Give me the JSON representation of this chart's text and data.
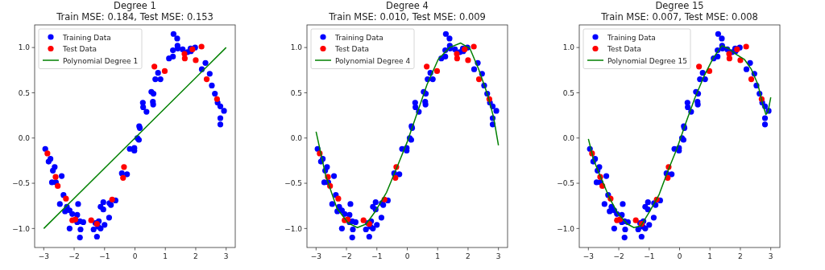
{
  "chart_data": [
    {
      "type": "scatter",
      "title": "Degree 1",
      "subtitle": "Train MSE: 0.184, Test MSE: 0.153",
      "xlim": [
        -3.3,
        3.3
      ],
      "ylim": [
        -1.21,
        1.25
      ],
      "xticks": [
        {
          "value": -3,
          "label": "−3"
        },
        {
          "value": -2,
          "label": "−2"
        },
        {
          "value": -1,
          "label": "−1"
        },
        {
          "value": 0,
          "label": "0"
        },
        {
          "value": 1,
          "label": "1"
        },
        {
          "value": 2,
          "label": "2"
        },
        {
          "value": 3,
          "label": "3"
        }
      ],
      "yticks": [
        {
          "value": -1,
          "label": "−1.0"
        },
        {
          "value": -0.5,
          "label": "−0.5"
        },
        {
          "value": 0,
          "label": "0.0"
        },
        {
          "value": 0.5,
          "label": "0.5"
        },
        {
          "value": 1,
          "label": "1.0"
        }
      ],
      "legend": "top left",
      "marker": "circle",
      "series": [
        {
          "name": "Training Data",
          "color": "#0000ff",
          "x": [
            -2.95,
            -2.84,
            -2.78,
            -2.7,
            -2.64,
            -2.73,
            -2.6,
            -2.41,
            -2.47,
            -2.35,
            -2.3,
            -2.24,
            -2.15,
            -2.06,
            -2.15,
            -1.9,
            -1.87,
            -1.9,
            -1.81,
            -1.79,
            -1.81,
            -1.7,
            -1.36,
            -1.3,
            -1.25,
            -1.19,
            -1.13,
            -1.21,
            -1.13,
            -1.04,
            -1.04,
            -1.0,
            -0.85,
            -0.84,
            -0.79,
            -0.64,
            -0.43,
            -0.26,
            -0.17,
            -0.02,
            -0.02,
            0.08,
            0.13,
            0.14,
            0.16,
            0.26,
            0.27,
            0.38,
            0.54,
            0.61,
            0.59,
            0.6,
            0.67,
            0.76,
            0.84,
            1.12,
            1.25,
            1.25,
            1.27,
            1.39,
            1.4,
            1.41,
            1.57,
            1.73,
            1.83,
            1.84,
            1.98,
            2.2,
            2.32,
            2.46,
            2.53,
            2.63,
            2.72,
            2.81,
            2.81,
            2.81,
            2.93
          ],
          "values": [
            -0.12,
            -0.26,
            -0.23,
            -0.36,
            -0.32,
            -0.49,
            -0.49,
            -0.42,
            -0.73,
            -0.63,
            -0.81,
            -0.76,
            -0.8,
            -0.84,
            -1.0,
            -0.85,
            -0.73,
            -0.93,
            -0.92,
            -1.01,
            -1.1,
            -0.93,
            -1.01,
            -0.94,
            -1.09,
            -0.92,
            -1.0,
            -0.98,
            -0.76,
            -0.79,
            -0.71,
            -0.96,
            -0.88,
            -0.72,
            -0.74,
            -0.69,
            -0.39,
            -0.4,
            -0.12,
            -0.14,
            -0.11,
            0.0,
            -0.02,
            0.13,
            0.11,
            0.39,
            0.34,
            0.29,
            0.51,
            0.49,
            0.4,
            0.37,
            0.65,
            0.72,
            0.65,
            0.88,
            0.9,
            0.97,
            1.15,
            1.1,
            1.02,
            0.99,
            0.98,
            0.95,
            0.99,
            0.96,
            1.0,
            0.76,
            0.83,
            0.71,
            0.58,
            0.49,
            0.39,
            0.35,
            0.22,
            0.15,
            0.3
          ]
        },
        {
          "name": "Test Data",
          "color": "#ff0000",
          "x": [
            -2.88,
            -2.61,
            -2.54,
            -2.27,
            -2.06,
            -1.96,
            -1.44,
            -1.25,
            -0.75,
            -0.39,
            -0.36,
            0.64,
            0.98,
            1.63,
            1.64,
            1.89,
            2.0,
            2.19,
            2.36,
            2.7
          ],
          "values": [
            -0.17,
            -0.43,
            -0.53,
            -0.67,
            -0.91,
            -0.9,
            -0.91,
            -0.95,
            -0.68,
            -0.44,
            -0.32,
            0.79,
            0.74,
            0.93,
            0.88,
            0.98,
            0.86,
            1.01,
            0.65,
            0.43
          ]
        },
        {
          "name": "Polynomial Degree 1",
          "type": "line",
          "marker": "none",
          "color": "#008000",
          "x": [
            -3,
            3
          ],
          "values": [
            -1,
            1
          ]
        }
      ]
    },
    {
      "type": "scatter",
      "title": "Degree 4",
      "subtitle": "Train MSE: 0.010, Test MSE: 0.009",
      "xlim": [
        -3.3,
        3.3
      ],
      "ylim": [
        -1.21,
        1.25
      ],
      "xticks": [
        {
          "value": -3,
          "label": "−3"
        },
        {
          "value": -2,
          "label": "−2"
        },
        {
          "value": -1,
          "label": "−1"
        },
        {
          "value": 0,
          "label": "0"
        },
        {
          "value": 1,
          "label": "1"
        },
        {
          "value": 2,
          "label": "2"
        },
        {
          "value": 3,
          "label": "3"
        }
      ],
      "yticks": [
        {
          "value": -1,
          "label": "−1.0"
        },
        {
          "value": -0.5,
          "label": "−0.5"
        },
        {
          "value": 0,
          "label": "0.0"
        },
        {
          "value": 0.5,
          "label": "0.5"
        },
        {
          "value": 1,
          "label": "1.0"
        }
      ],
      "legend": "top left",
      "marker": "circle",
      "series": [
        {
          "name": "Training Data",
          "color": "#0000ff",
          "x": [
            -2.95,
            -2.84,
            -2.78,
            -2.7,
            -2.64,
            -2.73,
            -2.6,
            -2.41,
            -2.47,
            -2.35,
            -2.3,
            -2.24,
            -2.15,
            -2.06,
            -2.15,
            -1.9,
            -1.87,
            -1.9,
            -1.81,
            -1.79,
            -1.81,
            -1.7,
            -1.36,
            -1.3,
            -1.25,
            -1.19,
            -1.13,
            -1.21,
            -1.13,
            -1.04,
            -1.04,
            -1.0,
            -0.85,
            -0.84,
            -0.79,
            -0.64,
            -0.43,
            -0.26,
            -0.17,
            -0.02,
            -0.02,
            0.08,
            0.13,
            0.14,
            0.16,
            0.26,
            0.27,
            0.38,
            0.54,
            0.61,
            0.59,
            0.6,
            0.67,
            0.76,
            0.84,
            1.12,
            1.25,
            1.25,
            1.27,
            1.39,
            1.4,
            1.41,
            1.57,
            1.73,
            1.83,
            1.84,
            1.98,
            2.2,
            2.32,
            2.46,
            2.53,
            2.63,
            2.72,
            2.81,
            2.81,
            2.81,
            2.93
          ],
          "values": [
            -0.12,
            -0.26,
            -0.23,
            -0.36,
            -0.32,
            -0.49,
            -0.49,
            -0.42,
            -0.73,
            -0.63,
            -0.81,
            -0.76,
            -0.8,
            -0.84,
            -1.0,
            -0.85,
            -0.73,
            -0.93,
            -0.92,
            -1.01,
            -1.1,
            -0.93,
            -1.01,
            -0.94,
            -1.09,
            -0.92,
            -1.0,
            -0.98,
            -0.76,
            -0.79,
            -0.71,
            -0.96,
            -0.88,
            -0.72,
            -0.74,
            -0.69,
            -0.39,
            -0.4,
            -0.12,
            -0.14,
            -0.11,
            0.0,
            -0.02,
            0.13,
            0.11,
            0.39,
            0.34,
            0.29,
            0.51,
            0.49,
            0.4,
            0.37,
            0.65,
            0.72,
            0.65,
            0.88,
            0.9,
            0.97,
            1.15,
            1.1,
            1.02,
            0.99,
            0.98,
            0.95,
            0.99,
            0.96,
            1.0,
            0.76,
            0.83,
            0.71,
            0.58,
            0.49,
            0.39,
            0.35,
            0.22,
            0.15,
            0.3
          ]
        },
        {
          "name": "Test Data",
          "color": "#ff0000",
          "x": [
            -2.88,
            -2.61,
            -2.54,
            -2.27,
            -2.06,
            -1.96,
            -1.44,
            -1.25,
            -0.75,
            -0.39,
            -0.36,
            0.64,
            0.98,
            1.63,
            1.64,
            1.89,
            2.0,
            2.19,
            2.36,
            2.7
          ],
          "values": [
            -0.17,
            -0.43,
            -0.53,
            -0.67,
            -0.91,
            -0.9,
            -0.91,
            -0.95,
            -0.68,
            -0.44,
            -0.32,
            0.79,
            0.74,
            0.93,
            0.88,
            0.98,
            0.86,
            1.01,
            0.65,
            0.43
          ]
        },
        {
          "name": "Polynomial Degree 4",
          "type": "line",
          "marker": "none",
          "color": "#008000",
          "x": [
            -3,
            -2.68,
            -2.31,
            -1.94,
            -1.64,
            -1.35,
            -1.05,
            -0.68,
            -0.31,
            -0.01,
            0.28,
            0.65,
            1.02,
            1.39,
            1.76,
            2.06,
            2.35,
            2.65,
            2.84,
            3
          ],
          "values": [
            0.07,
            -0.42,
            -0.78,
            -0.94,
            -0.99,
            -0.95,
            -0.81,
            -0.6,
            -0.3,
            -0.05,
            0.23,
            0.59,
            0.87,
            1.0,
            1.05,
            0.99,
            0.76,
            0.47,
            0.23,
            -0.08
          ]
        }
      ]
    },
    {
      "type": "scatter",
      "title": "Degree 15",
      "subtitle": "Train MSE: 0.007, Test MSE: 0.008",
      "xlim": [
        -3.3,
        3.3
      ],
      "ylim": [
        -1.21,
        1.25
      ],
      "xticks": [
        {
          "value": -3,
          "label": "−3"
        },
        {
          "value": -2,
          "label": "−2"
        },
        {
          "value": -1,
          "label": "−1"
        },
        {
          "value": 0,
          "label": "0"
        },
        {
          "value": 1,
          "label": "1"
        },
        {
          "value": 2,
          "label": "2"
        },
        {
          "value": 3,
          "label": "3"
        }
      ],
      "yticks": [
        {
          "value": -1,
          "label": "−1.0"
        },
        {
          "value": -0.5,
          "label": "−0.5"
        },
        {
          "value": 0,
          "label": "0.0"
        },
        {
          "value": 0.5,
          "label": "0.5"
        },
        {
          "value": 1,
          "label": "1.0"
        }
      ],
      "legend": "top left",
      "marker": "circle",
      "series": [
        {
          "name": "Training Data",
          "color": "#0000ff",
          "x": [
            -2.95,
            -2.84,
            -2.78,
            -2.7,
            -2.64,
            -2.73,
            -2.6,
            -2.41,
            -2.47,
            -2.35,
            -2.3,
            -2.24,
            -2.15,
            -2.06,
            -2.15,
            -1.9,
            -1.87,
            -1.9,
            -1.81,
            -1.79,
            -1.81,
            -1.7,
            -1.36,
            -1.3,
            -1.25,
            -1.19,
            -1.13,
            -1.21,
            -1.13,
            -1.04,
            -1.04,
            -1.0,
            -0.85,
            -0.84,
            -0.79,
            -0.64,
            -0.43,
            -0.26,
            -0.17,
            -0.02,
            -0.02,
            0.08,
            0.13,
            0.14,
            0.16,
            0.26,
            0.27,
            0.38,
            0.54,
            0.61,
            0.59,
            0.6,
            0.67,
            0.76,
            0.84,
            1.12,
            1.25,
            1.25,
            1.27,
            1.39,
            1.4,
            1.41,
            1.57,
            1.73,
            1.83,
            1.84,
            1.98,
            2.2,
            2.32,
            2.46,
            2.53,
            2.63,
            2.72,
            2.81,
            2.81,
            2.81,
            2.93
          ],
          "values": [
            -0.12,
            -0.26,
            -0.23,
            -0.36,
            -0.32,
            -0.49,
            -0.49,
            -0.42,
            -0.73,
            -0.63,
            -0.81,
            -0.76,
            -0.8,
            -0.84,
            -1.0,
            -0.85,
            -0.73,
            -0.93,
            -0.92,
            -1.01,
            -1.1,
            -0.93,
            -1.01,
            -0.94,
            -1.09,
            -0.92,
            -1.0,
            -0.98,
            -0.76,
            -0.79,
            -0.71,
            -0.96,
            -0.88,
            -0.72,
            -0.74,
            -0.69,
            -0.39,
            -0.4,
            -0.12,
            -0.14,
            -0.11,
            0.0,
            -0.02,
            0.13,
            0.11,
            0.39,
            0.34,
            0.29,
            0.51,
            0.49,
            0.4,
            0.37,
            0.65,
            0.72,
            0.65,
            0.88,
            0.9,
            0.97,
            1.15,
            1.1,
            1.02,
            0.99,
            0.98,
            0.95,
            0.99,
            0.96,
            1.0,
            0.76,
            0.83,
            0.71,
            0.58,
            0.49,
            0.39,
            0.35,
            0.22,
            0.15,
            0.3
          ]
        },
        {
          "name": "Test Data",
          "color": "#ff0000",
          "x": [
            -2.88,
            -2.61,
            -2.54,
            -2.27,
            -2.06,
            -1.96,
            -1.44,
            -1.25,
            -0.75,
            -0.39,
            -0.36,
            0.64,
            0.98,
            1.63,
            1.64,
            1.89,
            2.0,
            2.19,
            2.36,
            2.7
          ],
          "values": [
            -0.17,
            -0.43,
            -0.53,
            -0.67,
            -0.91,
            -0.9,
            -0.91,
            -0.95,
            -0.68,
            -0.44,
            -0.32,
            0.79,
            0.74,
            0.93,
            0.88,
            0.98,
            0.86,
            1.01,
            0.65,
            0.43
          ]
        },
        {
          "name": "Polynomial Degree 15",
          "type": "line",
          "marker": "none",
          "color": "#008000",
          "x": [
            -3,
            -2.83,
            -2.61,
            -2.31,
            -2.02,
            -1.72,
            -1.5,
            -1.27,
            -0.98,
            -0.68,
            -0.38,
            -0.09,
            0.21,
            0.5,
            0.8,
            1.1,
            1.39,
            1.61,
            1.84,
            2.13,
            2.36,
            2.58,
            2.73,
            2.84,
            2.91,
            3
          ],
          "values": [
            -0.01,
            -0.24,
            -0.42,
            -0.66,
            -0.84,
            -0.95,
            -0.99,
            -0.97,
            -0.81,
            -0.63,
            -0.36,
            -0.12,
            0.17,
            0.44,
            0.68,
            0.88,
            1.02,
            0.99,
            0.93,
            0.87,
            0.76,
            0.59,
            0.38,
            0.26,
            0.29,
            0.45
          ]
        }
      ]
    }
  ]
}
